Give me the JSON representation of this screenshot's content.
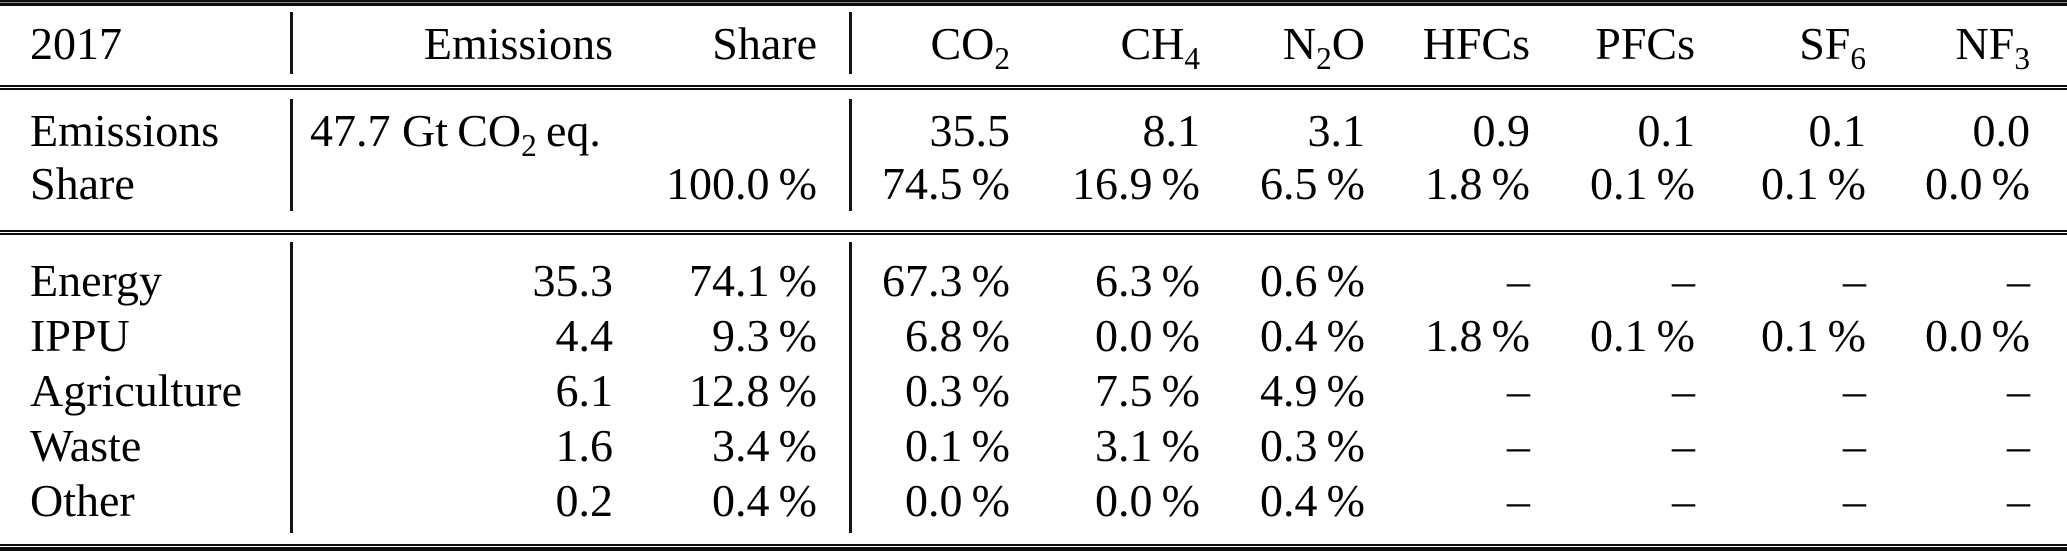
{
  "table": {
    "year": "2017",
    "columns": [
      "Emissions",
      "Share",
      "CO~2~",
      "CH~4~",
      "N~2~O",
      "HFCs",
      "PFCs",
      "SF~6~",
      "NF~3~"
    ],
    "summary_rows": [
      {
        "label": "Emissions",
        "emissions_span": "47.7 Gt CO~2~ eq.",
        "values": [
          "35.5",
          "8.1",
          "3.1",
          "0.9",
          "0.1",
          "0.1",
          "0.0"
        ]
      },
      {
        "label": "Share",
        "share": "100.0 %",
        "values": [
          "74.5 %",
          "16.9 %",
          "6.5 %",
          "1.8 %",
          "0.1 %",
          "0.1 %",
          "0.0 %"
        ]
      }
    ],
    "sector_rows": [
      {
        "label": "Energy",
        "emissions": "35.3",
        "share": "74.1 %",
        "values": [
          "67.3 %",
          "6.3 %",
          "0.6 %",
          "–",
          "–",
          "–",
          "–"
        ]
      },
      {
        "label": "IPPU",
        "emissions": "4.4",
        "share": "9.3 %",
        "values": [
          "6.8 %",
          "0.0 %",
          "0.4 %",
          "1.8 %",
          "0.1 %",
          "0.1 %",
          "0.0 %"
        ]
      },
      {
        "label": "Agriculture",
        "emissions": "6.1",
        "share": "12.8 %",
        "values": [
          "0.3 %",
          "7.5 %",
          "4.9 %",
          "–",
          "–",
          "–",
          "–"
        ]
      },
      {
        "label": "Waste",
        "emissions": "1.6",
        "share": "3.4 %",
        "values": [
          "0.1 %",
          "3.1 %",
          "0.3 %",
          "–",
          "–",
          "–",
          "–"
        ]
      },
      {
        "label": "Other",
        "emissions": "0.2",
        "share": "0.4 %",
        "values": [
          "0.0 %",
          "0.0 %",
          "0.4 %",
          "–",
          "–",
          "–",
          "–"
        ]
      }
    ]
  }
}
